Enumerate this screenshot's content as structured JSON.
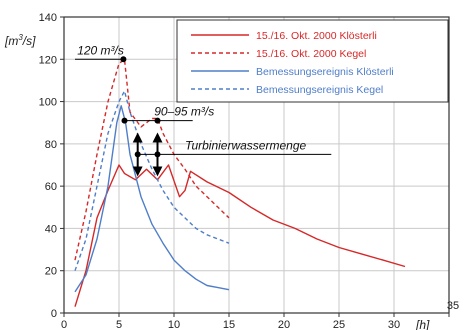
{
  "chart_data": {
    "type": "line",
    "title": "",
    "xlabel": "[h]",
    "ylabel": "[m3/s]",
    "ylabel_main": "[m",
    "ylabel_sup": "3",
    "ylabel_tail": "/s]",
    "xlim": [
      0,
      35
    ],
    "ylim": [
      0,
      140
    ],
    "xticks": [
      0,
      5,
      10,
      15,
      20,
      25,
      30,
      35
    ],
    "yticks": [
      0,
      20,
      40,
      60,
      80,
      100,
      120,
      140
    ],
    "grid": true,
    "legend_placement": "top-right",
    "series": [
      {
        "name": "15./16. Okt. 2000 Klösterli",
        "color": "#d62828",
        "dash": "solid",
        "x": [
          1,
          2,
          3,
          4,
          5,
          5.5,
          6.5,
          7.5,
          8.5,
          9.5,
          10.5,
          11,
          11.5,
          13,
          15,
          17,
          19,
          21,
          23,
          25,
          27,
          29,
          31
        ],
        "y": [
          3,
          20,
          45,
          58,
          70,
          66,
          63,
          68,
          63,
          70,
          55,
          58,
          67,
          62,
          57,
          50,
          44,
          40,
          35,
          31,
          28,
          25,
          22
        ]
      },
      {
        "name": "15./16. Okt. 2000 Kegel",
        "color": "#d62828",
        "dash": "dashed",
        "x": [
          1,
          2,
          3,
          4,
          5,
          5.5,
          6,
          7,
          8,
          8.5,
          9,
          10,
          11,
          12,
          13,
          14,
          15
        ],
        "y": [
          25,
          48,
          75,
          100,
          118,
          120,
          95,
          88,
          92,
          92,
          85,
          75,
          68,
          60,
          55,
          50,
          45
        ]
      },
      {
        "name": "Bemessungsereignis Klösterli",
        "color": "#4f7ec9",
        "dash": "solid",
        "x": [
          1,
          2,
          3,
          4,
          4.8,
          5.2,
          5.6,
          6,
          7,
          8,
          9,
          10,
          11,
          12,
          13,
          14,
          15
        ],
        "y": [
          10,
          18,
          35,
          60,
          90,
          98,
          90,
          75,
          55,
          42,
          33,
          25,
          20,
          16,
          13,
          12,
          11
        ]
      },
      {
        "name": "Bemessungsereignis Kegel",
        "color": "#4f7ec9",
        "dash": "dashed",
        "x": [
          1,
          2,
          3,
          4,
          5,
          5.5,
          6,
          7,
          8,
          9,
          10,
          11,
          12,
          13,
          14,
          15
        ],
        "y": [
          20,
          35,
          60,
          85,
          100,
          105,
          95,
          80,
          68,
          58,
          50,
          45,
          40,
          37,
          35,
          33
        ]
      }
    ],
    "peak_points": [
      {
        "x": 5.4,
        "y": 120
      },
      {
        "x": 5.5,
        "y": 91
      },
      {
        "x": 8.5,
        "y": 91
      },
      {
        "x": 6.7,
        "y": 75
      },
      {
        "x": 8.5,
        "y": 75
      }
    ],
    "arrows": [
      {
        "x": 6.7,
        "y_from": 67,
        "y_to": 83
      },
      {
        "x": 8.5,
        "y_from": 67,
        "y_to": 83
      }
    ],
    "annotations": {
      "peak": "120 m³/s",
      "range": "90–95 m³/s",
      "turbine": "Turbinierwassermenge"
    }
  }
}
